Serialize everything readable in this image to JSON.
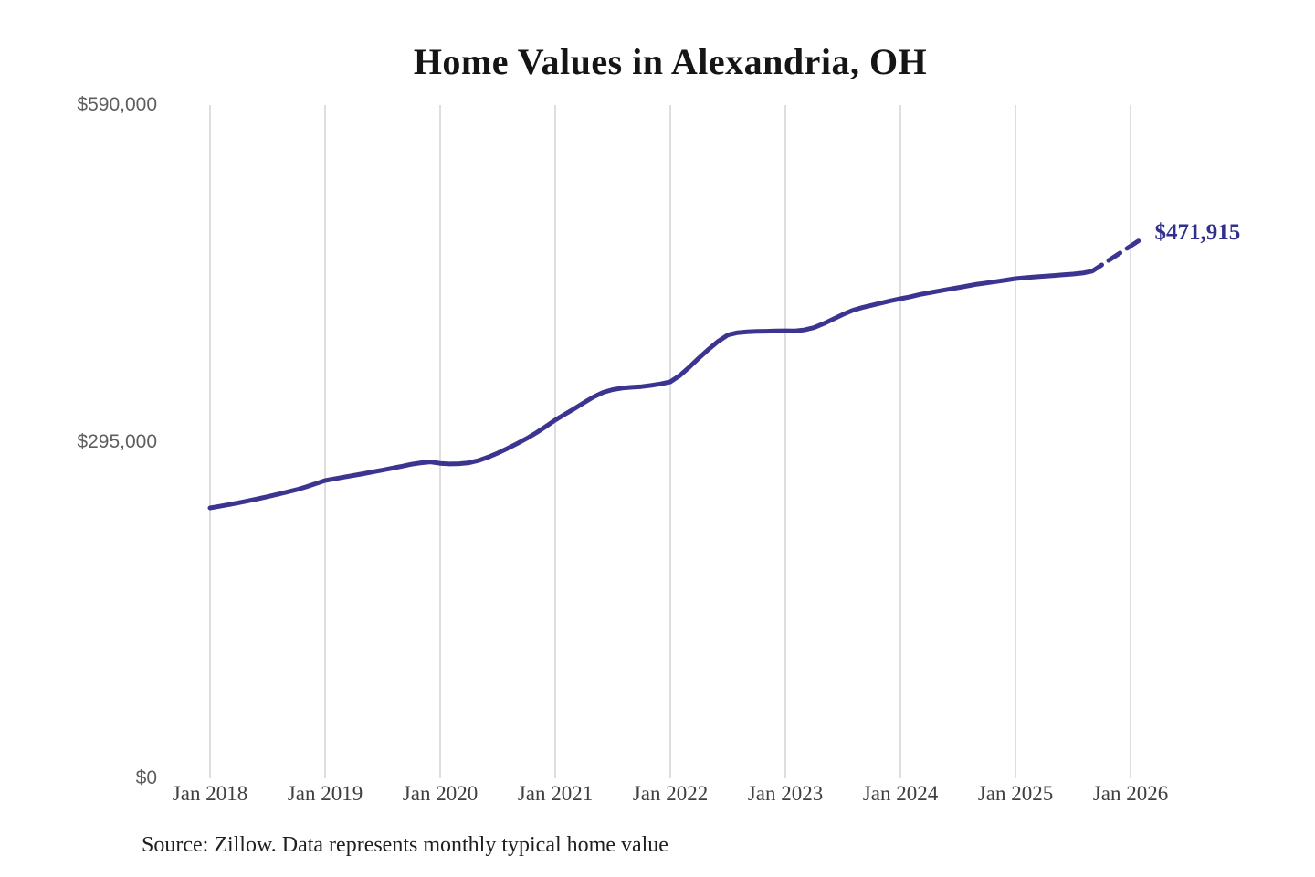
{
  "chart_data": {
    "type": "line",
    "title": "Home Values in Alexandria, OH",
    "source_note": "Source: Zillow. Data represents monthly typical home value",
    "ylim": [
      0,
      590000
    ],
    "y_ticks": [
      {
        "label": "$590,000",
        "value": 590000
      },
      {
        "label": "$295,000",
        "value": 295000
      },
      {
        "label": "$0",
        "value": 0
      }
    ],
    "x_ticks": [
      "Jan 2018",
      "Jan 2019",
      "Jan 2020",
      "Jan 2021",
      "Jan 2022",
      "Jan 2023",
      "Jan 2024",
      "Jan 2025",
      "Jan 2026"
    ],
    "interval": "monthly",
    "series_start": "Jan 2018",
    "values": [
      237000,
      238400,
      239900,
      241500,
      243200,
      245000,
      246800,
      248800,
      250800,
      252900,
      255400,
      258200,
      261000,
      262500,
      264000,
      265500,
      267000,
      268600,
      270100,
      271800,
      273500,
      275200,
      276500,
      277300,
      276000,
      275500,
      275700,
      276500,
      278500,
      281500,
      285000,
      289000,
      293200,
      297700,
      302700,
      308200,
      314000,
      319000,
      324000,
      329200,
      334200,
      338200,
      340600,
      342000,
      342700,
      343300,
      344300,
      345700,
      347400,
      353000,
      360500,
      368500,
      376000,
      383000,
      388500,
      390500,
      391200,
      391600,
      391800,
      392000,
      392200,
      392100,
      393000,
      395000,
      398500,
      402500,
      406500,
      410000,
      412500,
      414500,
      416500,
      418500,
      420300,
      422000,
      424000,
      425500,
      427000,
      428500,
      430000,
      431500,
      433000,
      434100,
      435300,
      436600,
      437900,
      438700,
      439400,
      440000,
      440600,
      441300,
      441900,
      442800,
      444500,
      449900
    ],
    "forecast": {
      "label": "$471,915",
      "value": 471915,
      "style": "dashed"
    },
    "colors": {
      "line": "#3b3490",
      "annotation": "#31308c",
      "grid": "#cfcfcf",
      "title": "#151515",
      "y_tick_text": "#5e5e5e",
      "x_tick_text": "#3f3f3f",
      "source_text": "#1f1f1f",
      "background": "#ffffff"
    },
    "legend_position": "none",
    "grid": "vertical-only"
  }
}
